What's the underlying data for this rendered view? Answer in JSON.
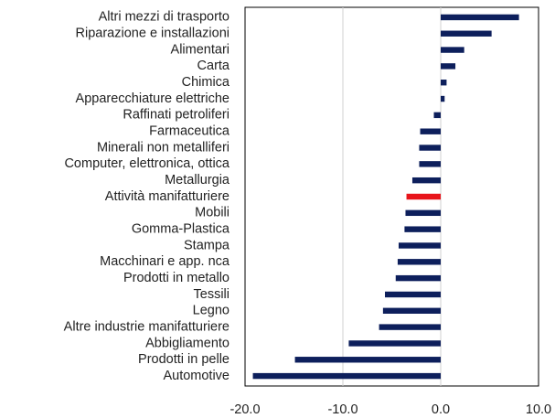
{
  "chart_data": {
    "type": "barh",
    "categories": [
      "Altri mezzi di trasporto",
      "Riparazione e installazioni",
      "Alimentari",
      "Carta",
      "Chimica",
      "Apparecchiature elettriche",
      "Raffinati petroliferi",
      "Farmaceutica",
      "Minerali non metalliferi",
      "Computer, elettronica, ottica",
      "Metallurgia",
      "Attività manifatturiere",
      "Mobili",
      "Gomma-Plastica",
      "Stampa",
      "Macchinari e app. nca",
      "Prodotti in metallo",
      "Tessili",
      "Legno",
      "Altre industrie manifatturiere",
      "Abbigliamento",
      "Prodotti in pelle",
      "Automotive"
    ],
    "values": [
      8.0,
      5.2,
      2.4,
      1.5,
      0.6,
      0.4,
      -0.7,
      -2.1,
      -2.2,
      -2.2,
      -2.9,
      -3.5,
      -3.6,
      -3.7,
      -4.3,
      -4.4,
      -4.6,
      -5.7,
      -5.9,
      -6.3,
      -9.4,
      -14.9,
      -19.2
    ],
    "colors": [
      "#0d1f5c",
      "#0d1f5c",
      "#0d1f5c",
      "#0d1f5c",
      "#0d1f5c",
      "#0d1f5c",
      "#0d1f5c",
      "#0d1f5c",
      "#0d1f5c",
      "#0d1f5c",
      "#0d1f5c",
      "#e8151b",
      "#0d1f5c",
      "#0d1f5c",
      "#0d1f5c",
      "#0d1f5c",
      "#0d1f5c",
      "#0d1f5c",
      "#0d1f5c",
      "#0d1f5c",
      "#0d1f5c",
      "#0d1f5c",
      "#0d1f5c"
    ],
    "xlim": [
      -20,
      10
    ],
    "xticks": [
      {
        "value": -20,
        "label": "-20.0"
      },
      {
        "value": -10,
        "label": "-10.0"
      },
      {
        "value": 0,
        "label": "0.0"
      },
      {
        "value": 10,
        "label": "10.0"
      }
    ],
    "grid": true
  }
}
